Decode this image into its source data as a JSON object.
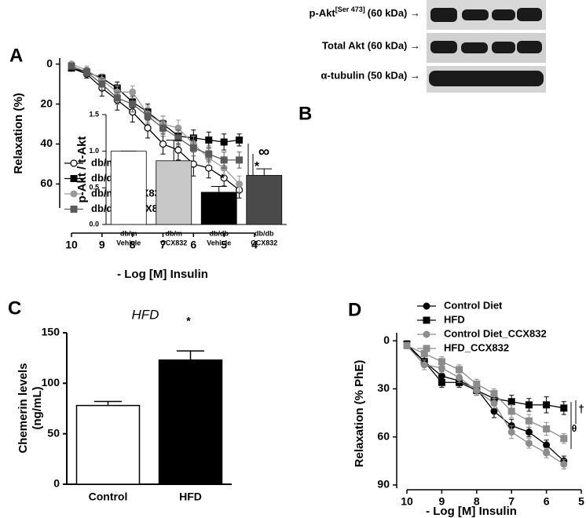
{
  "blot": {
    "rows": [
      {
        "label": "p-Akt",
        "superscript": "[Ser 473]",
        "suffix": "(60 kDa) →"
      },
      {
        "label": "Total Akt (60 kDa) →"
      },
      {
        "label": "α-tubulin (50 kDa) →"
      }
    ]
  },
  "chart_data": [
    {
      "type": "line",
      "panel": "A",
      "y_inverted": true,
      "y_label": "Relaxation (%)",
      "x_label": "- Log [M] Insulin",
      "x": [
        10,
        9.5,
        9,
        8.5,
        8,
        7.5,
        7,
        6.5,
        6,
        5.5,
        5,
        4.5
      ],
      "xlim": [
        10,
        4
      ],
      "xticks": [
        10,
        9,
        8,
        7,
        6,
        5,
        4
      ],
      "ylim": [
        -3,
        72
      ],
      "yticks": [
        0,
        20,
        40,
        60
      ],
      "series": [
        {
          "name": "db/m",
          "color": "#000000",
          "marker": "circle-open",
          "values": [
            2,
            5,
            12,
            18,
            24,
            32,
            40,
            43,
            50,
            52,
            57,
            63
          ],
          "errors": [
            1,
            2,
            4,
            5,
            5,
            5,
            5,
            5,
            6,
            5,
            4,
            4
          ]
        },
        {
          "name": "db/db",
          "color": "#000000",
          "marker": "square",
          "values": [
            2,
            4,
            7,
            12,
            19,
            24,
            30,
            36,
            37,
            38,
            39,
            38
          ],
          "errors": [
            1,
            2,
            2,
            3,
            3,
            4,
            4,
            4,
            4,
            4,
            4,
            3
          ]
        },
        {
          "name": "db/m + CCX832",
          "color": "#9a9a9a",
          "marker": "circle",
          "values": [
            0,
            3,
            8,
            14,
            14,
            25,
            30,
            32,
            40,
            47,
            52,
            60
          ],
          "errors": [
            1,
            2,
            3,
            3,
            3,
            4,
            4,
            4,
            4,
            4,
            4,
            4
          ]
        },
        {
          "name": "db/db + CCX832",
          "color": "#5a5a5a",
          "marker": "square",
          "values": [
            1,
            4,
            10,
            17,
            20,
            26,
            32,
            37,
            42,
            45,
            48,
            48
          ],
          "errors": [
            1,
            2,
            3,
            3,
            4,
            4,
            4,
            4,
            4,
            4,
            4,
            4
          ]
        }
      ],
      "annotations": [
        "∞",
        "*"
      ]
    },
    {
      "type": "bar",
      "panel": "B",
      "y_label": "p-Akt / t-Akt",
      "categories": [
        [
          "db/m",
          "Vehicle"
        ],
        [
          "db/m",
          "CCX832"
        ],
        [
          "db/db",
          "Vehicle"
        ],
        [
          "db/db",
          "CCX832"
        ]
      ],
      "values": [
        1.0,
        0.87,
        0.44,
        0.67
      ],
      "errors": [
        0,
        0.28,
        0.08,
        0.09
      ],
      "colors": [
        "#ffffff",
        "#c8c8c8",
        "#000000",
        "#4a4a4a"
      ],
      "ylim": [
        0,
        1.5
      ],
      "yticks": [
        {
          "value": 0,
          "label": "0.0"
        },
        0.5,
        {
          "value": 1,
          "label": "1.0"
        },
        1.5
      ],
      "annotations": [
        "*"
      ]
    },
    {
      "type": "bar",
      "panel": "C",
      "title": "HFD",
      "y_label": [
        "Chemerin levels",
        "(ng/mL)"
      ],
      "categories": [
        "Control",
        "HFD"
      ],
      "values": [
        78,
        123
      ],
      "errors": [
        4,
        9
      ],
      "colors": [
        "#ffffff",
        "#000000"
      ],
      "ylim": [
        0,
        150
      ],
      "yticks": [
        0,
        50,
        100,
        150
      ],
      "annotations": [
        "*"
      ]
    },
    {
      "type": "line",
      "panel": "D",
      "y_inverted": true,
      "y_label": "Relaxation (% PhE)",
      "x_label": "- Log [M] Insulin",
      "x": [
        10,
        9.5,
        9,
        8.5,
        8,
        7.5,
        7,
        6.5,
        6,
        5.5
      ],
      "xlim": [
        10,
        5
      ],
      "xticks": [
        10,
        9,
        8,
        7,
        6,
        5
      ],
      "ylim": [
        -5,
        92
      ],
      "yticks": [
        0,
        30,
        60,
        90
      ],
      "series": [
        {
          "name": "Control Diet",
          "color": "#000000",
          "marker": "circle",
          "values": [
            3,
            13,
            22,
            25,
            30,
            44,
            53,
            57,
            65,
            75
          ],
          "errors": [
            2,
            3,
            3,
            3,
            3,
            4,
            4,
            3,
            3,
            3
          ]
        },
        {
          "name": "HFD",
          "color": "#000000",
          "marker": "square",
          "values": [
            2,
            13,
            26,
            26,
            31,
            36,
            38,
            40,
            40,
            42
          ],
          "errors": [
            2,
            3,
            3,
            3,
            3,
            4,
            4,
            4,
            5,
            4
          ]
        },
        {
          "name": "Control Diet_CCX832",
          "color": "#8c8c8c",
          "marker": "circle",
          "values": [
            3,
            15,
            17,
            23,
            31,
            39,
            57,
            64,
            70,
            77
          ],
          "errors": [
            2,
            3,
            3,
            3,
            3,
            3,
            4,
            3,
            3,
            3
          ]
        },
        {
          "name": "HFD_CCX832",
          "color": "#8c8c8c",
          "marker": "square",
          "values": [
            3,
            8,
            13,
            18,
            27,
            33,
            44,
            50,
            55,
            61
          ],
          "errors": [
            2,
            2,
            3,
            3,
            3,
            3,
            4,
            4,
            4,
            3
          ]
        }
      ],
      "annotations": [
        "†",
        "θ"
      ]
    }
  ]
}
